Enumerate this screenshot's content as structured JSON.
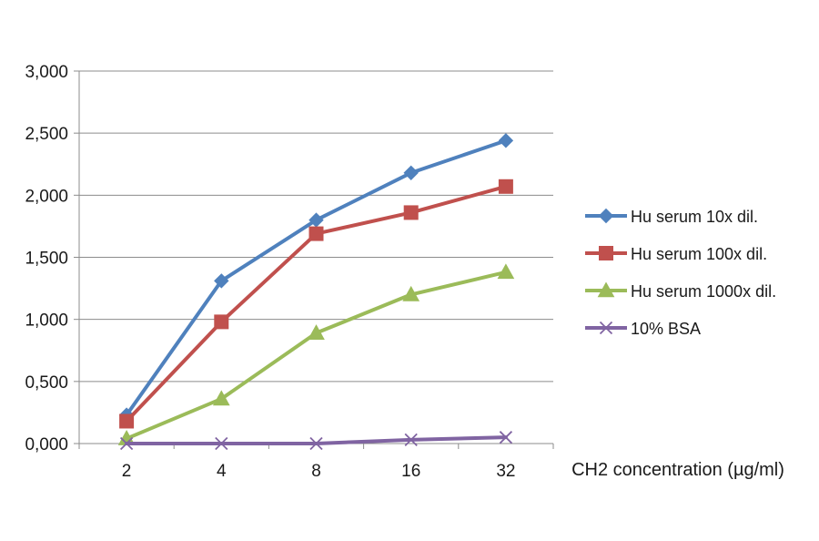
{
  "chart_data": {
    "type": "line",
    "title": "",
    "xlabel": "CH2 concentration (µg/ml)",
    "ylabel": "",
    "categories": [
      "2",
      "4",
      "8",
      "16",
      "32"
    ],
    "y_ticks": [
      "0,000",
      "0,500",
      "1,000",
      "1,500",
      "2,000",
      "2,500",
      "3,000"
    ],
    "ylim": [
      0,
      3.0
    ],
    "grid": true,
    "legend_position": "right",
    "series": [
      {
        "name": "Hu serum 10x dil.",
        "values": [
          0.23,
          1.31,
          1.8,
          2.18,
          2.44
        ],
        "color": "#4F81BD",
        "marker": "diamond"
      },
      {
        "name": "Hu serum 100x dil.",
        "values": [
          0.18,
          0.98,
          1.69,
          1.86,
          2.07
        ],
        "color": "#C0504D",
        "marker": "square"
      },
      {
        "name": "Hu serum 1000x dil.",
        "values": [
          0.04,
          0.36,
          0.89,
          1.2,
          1.38
        ],
        "color": "#9BBB59",
        "marker": "triangle"
      },
      {
        "name": "10% BSA",
        "values": [
          0.0,
          0.0,
          0.0,
          0.03,
          0.05
        ],
        "color": "#8064A2",
        "marker": "x"
      }
    ]
  }
}
